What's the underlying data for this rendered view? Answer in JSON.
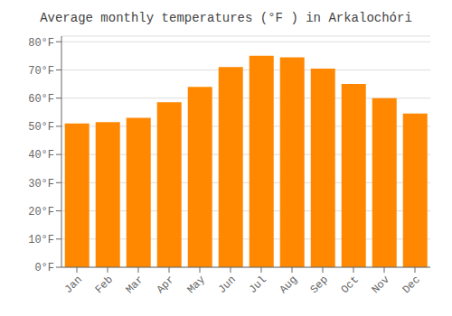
{
  "chart_data": {
    "type": "bar",
    "title": "Average monthly temperatures (°F ) in Arkalochóri",
    "categories": [
      "Jan",
      "Feb",
      "Mar",
      "Apr",
      "May",
      "Jun",
      "Jul",
      "Aug",
      "Sep",
      "Oct",
      "Nov",
      "Dec"
    ],
    "values": [
      51,
      51.5,
      53,
      58.5,
      64,
      71,
      75,
      74.5,
      70.5,
      65,
      60,
      54.5
    ],
    "color": "#FF8800",
    "ylim": [
      0,
      82
    ],
    "yticks": [
      {
        "value": 0,
        "label": "0°F"
      },
      {
        "value": 10,
        "label": "10°F"
      },
      {
        "value": 20,
        "label": "20°F"
      },
      {
        "value": 30,
        "label": "30°F"
      },
      {
        "value": 40,
        "label": "40°F"
      },
      {
        "value": 50,
        "label": "50°F"
      },
      {
        "value": 60,
        "label": "60°F"
      },
      {
        "value": 70,
        "label": "70°F"
      },
      {
        "value": 80,
        "label": "80°F"
      }
    ],
    "grid": true
  }
}
